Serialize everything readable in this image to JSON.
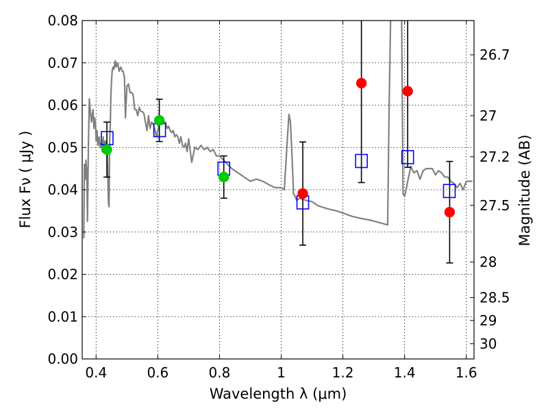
{
  "chart_data": {
    "type": "scatter",
    "title": "",
    "xlabel": "Wavelength  λ (μm)",
    "ylabel": "Flux  Fν  ( μJy )",
    "ylabel_right": "Magnitude (AB)",
    "xlim": [
      0.355,
      1.625
    ],
    "ylim": [
      0.0,
      0.08
    ],
    "grid": true,
    "x_ticks": [
      {
        "value": 0.4,
        "label": "0.4"
      },
      {
        "value": 0.6,
        "label": "0.6"
      },
      {
        "value": 0.8,
        "label": "0.8"
      },
      {
        "value": 1.0,
        "label": "1"
      },
      {
        "value": 1.2,
        "label": "1.2"
      },
      {
        "value": 1.4,
        "label": "1.4"
      },
      {
        "value": 1.6,
        "label": "1.6"
      }
    ],
    "y_ticks": [
      {
        "value": 0.0,
        "label": "0.00"
      },
      {
        "value": 0.01,
        "label": "0.01"
      },
      {
        "value": 0.02,
        "label": "0.02"
      },
      {
        "value": 0.03,
        "label": "0.03"
      },
      {
        "value": 0.04,
        "label": "0.04"
      },
      {
        "value": 0.05,
        "label": "0.05"
      },
      {
        "value": 0.06,
        "label": "0.06"
      },
      {
        "value": 0.07,
        "label": "0.07"
      },
      {
        "value": 0.08,
        "label": "0.08"
      }
    ],
    "right_ticks": [
      {
        "flux": 0.0719,
        "label": "26.7"
      },
      {
        "flux": 0.0575,
        "label": "27"
      },
      {
        "flux": 0.0478,
        "label": "27.2"
      },
      {
        "flux": 0.0363,
        "label": "27.5"
      },
      {
        "flux": 0.0229,
        "label": "28"
      },
      {
        "flux": 0.0145,
        "label": "28.5"
      },
      {
        "flux": 0.0091,
        "label": "29"
      },
      {
        "flux": 0.0036,
        "label": "30"
      }
    ],
    "template_spectrum": {
      "color": "#808080",
      "x": [
        0.36,
        0.362,
        0.365,
        0.367,
        0.37,
        0.372,
        0.375,
        0.378,
        0.382,
        0.385,
        0.39,
        0.393,
        0.395,
        0.398,
        0.4,
        0.403,
        0.406,
        0.41,
        0.413,
        0.416,
        0.42,
        0.423,
        0.425,
        0.428,
        0.43,
        0.433,
        0.436,
        0.44,
        0.442,
        0.444,
        0.446,
        0.448,
        0.45,
        0.452,
        0.455,
        0.458,
        0.462,
        0.465,
        0.47,
        0.475,
        0.48,
        0.485,
        0.488,
        0.492,
        0.495,
        0.5,
        0.505,
        0.51,
        0.515,
        0.52,
        0.525,
        0.53,
        0.535,
        0.54,
        0.545,
        0.55,
        0.555,
        0.56,
        0.565,
        0.57,
        0.575,
        0.58,
        0.585,
        0.59,
        0.595,
        0.6,
        0.605,
        0.61,
        0.615,
        0.62,
        0.625,
        0.63,
        0.635,
        0.64,
        0.645,
        0.65,
        0.655,
        0.66,
        0.665,
        0.67,
        0.675,
        0.68,
        0.685,
        0.69,
        0.695,
        0.7,
        0.71,
        0.72,
        0.73,
        0.74,
        0.75,
        0.76,
        0.77,
        0.78,
        0.79,
        0.8,
        0.82,
        0.84,
        0.86,
        0.88,
        0.9,
        0.92,
        0.94,
        0.96,
        0.98,
        1.0,
        1.01,
        1.02,
        1.025,
        1.03,
        1.035,
        1.04,
        1.045,
        1.05,
        1.06,
        1.08,
        1.1,
        1.12,
        1.15,
        1.18,
        1.2,
        1.23,
        1.26,
        1.29,
        1.31,
        1.33,
        1.345,
        1.35,
        1.355,
        1.36,
        1.37,
        1.38,
        1.385,
        1.39,
        1.395,
        1.4,
        1.405,
        1.41,
        1.42,
        1.43,
        1.44,
        1.45,
        1.46,
        1.47,
        1.48,
        1.49,
        1.5,
        1.51,
        1.52,
        1.53,
        1.54,
        1.55,
        1.56,
        1.57,
        1.58,
        1.59,
        1.6,
        1.61,
        1.62
      ],
      "y": [
        0.0285,
        0.046,
        0.0425,
        0.047,
        0.044,
        0.0325,
        0.05,
        0.0615,
        0.058,
        0.056,
        0.059,
        0.0545,
        0.057,
        0.0555,
        0.0515,
        0.054,
        0.0505,
        0.0525,
        0.05,
        0.051,
        0.049,
        0.0525,
        0.05,
        0.0515,
        0.049,
        0.0515,
        0.05,
        0.037,
        0.036,
        0.0515,
        0.055,
        0.0625,
        0.0655,
        0.068,
        0.069,
        0.0685,
        0.0705,
        0.069,
        0.07,
        0.068,
        0.069,
        0.068,
        0.068,
        0.0665,
        0.057,
        0.0645,
        0.065,
        0.063,
        0.063,
        0.0625,
        0.059,
        0.059,
        0.0575,
        0.0595,
        0.0585,
        0.0585,
        0.058,
        0.056,
        0.054,
        0.0575,
        0.0545,
        0.056,
        0.0555,
        0.0545,
        0.0525,
        0.054,
        0.0555,
        0.0555,
        0.0555,
        0.056,
        0.056,
        0.0545,
        0.055,
        0.054,
        0.0535,
        0.054,
        0.0525,
        0.053,
        0.0525,
        0.051,
        0.0525,
        0.0505,
        0.05,
        0.051,
        0.049,
        0.052,
        0.0465,
        0.05,
        0.0495,
        0.0505,
        0.0495,
        0.05,
        0.049,
        0.0495,
        0.048,
        0.048,
        0.0465,
        0.045,
        0.044,
        0.043,
        0.042,
        0.0425,
        0.042,
        0.0412,
        0.0405,
        0.0405,
        0.04,
        0.052,
        0.0578,
        0.056,
        0.048,
        0.039,
        0.0385,
        0.0375,
        0.038,
        0.0375,
        0.0372,
        0.0362,
        0.0355,
        0.035,
        0.0345,
        0.0337,
        0.0332,
        0.0328,
        0.0324,
        0.032,
        0.0317,
        0.06,
        0.082,
        0.085,
        0.085,
        0.085,
        0.085,
        0.084,
        0.039,
        0.0385,
        0.04,
        0.042,
        0.0455,
        0.044,
        0.0445,
        0.0425,
        0.0445,
        0.045,
        0.045,
        0.045,
        0.0435,
        0.0445,
        0.044,
        0.043,
        0.043,
        0.042,
        0.0415,
        0.0405,
        0.0415,
        0.04,
        0.042,
        0.042,
        0.042
      ]
    },
    "series": [
      {
        "marker": "open-square",
        "color": "#0000ff",
        "points": [
          {
            "x": 0.436,
            "y": 0.0522
          },
          {
            "x": 0.606,
            "y": 0.0541
          },
          {
            "x": 0.814,
            "y": 0.045
          },
          {
            "x": 1.07,
            "y": 0.037
          },
          {
            "x": 1.26,
            "y": 0.0468
          },
          {
            "x": 1.41,
            "y": 0.0477
          },
          {
            "x": 1.545,
            "y": 0.0397
          }
        ]
      },
      {
        "marker": "filled-circle",
        "color": "#00cc00",
        "points": [
          {
            "x": 0.435,
            "y": 0.0495,
            "err": 0.0065
          },
          {
            "x": 0.605,
            "y": 0.0564,
            "err": 0.005
          },
          {
            "x": 0.814,
            "y": 0.043,
            "err": 0.005
          }
        ]
      },
      {
        "marker": "filled-circle",
        "color": "#ff0000",
        "points": [
          {
            "x": 1.07,
            "y": 0.0391,
            "err": 0.0122
          },
          {
            "x": 1.26,
            "y": 0.0652,
            "err": 0.0235
          },
          {
            "x": 1.41,
            "y": 0.0633,
            "err": 0.018
          },
          {
            "x": 1.546,
            "y": 0.0347,
            "err": 0.012
          }
        ]
      }
    ]
  }
}
